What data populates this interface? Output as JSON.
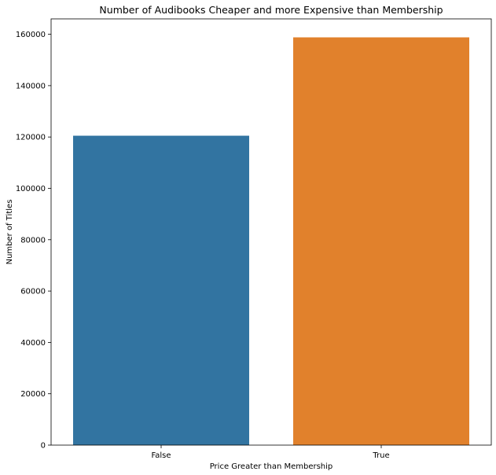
{
  "chart_data": {
    "type": "bar",
    "title": "Number of Audibooks Cheaper and more Expensive than Membership",
    "xlabel": "Price Greater than Membership",
    "ylabel": "Number of Titles",
    "categories": [
      "False",
      "True"
    ],
    "values": [
      120500,
      158800
    ],
    "colors": [
      "#3274a1",
      "#e1812c"
    ],
    "ylim": [
      0,
      166000
    ],
    "yticks": [
      0,
      20000,
      40000,
      60000,
      80000,
      100000,
      120000,
      140000,
      160000
    ],
    "ytick_labels": [
      "0",
      "20000",
      "40000",
      "60000",
      "80000",
      "100000",
      "120000",
      "140000",
      "160000"
    ],
    "grid": false,
    "legend": "none"
  }
}
